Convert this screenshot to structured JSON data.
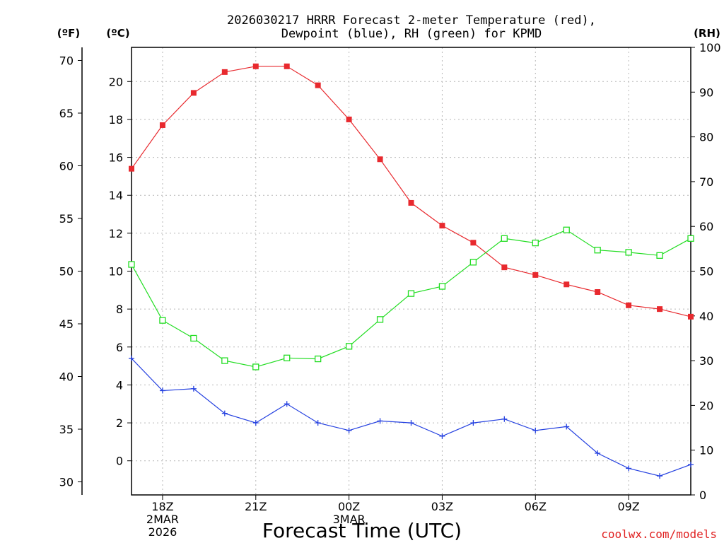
{
  "chart_data": {
    "type": "line",
    "title_line1": "2026030217 HRRR Forecast 2-meter Temperature (red),",
    "title_line2": "Dewpoint (blue), RH (green) for KPMD",
    "units": {
      "fahrenheit": "(ºF)",
      "celsius": "(ºC)",
      "rh": "(RH)"
    },
    "xlabel": "Forecast Time (UTC)",
    "credit": "coolwx.com/models",
    "x_hours": [
      0,
      1,
      2,
      3,
      4,
      5,
      6,
      7,
      8,
      9,
      10,
      11,
      12,
      13,
      14,
      15,
      16,
      17,
      18
    ],
    "x_ticks": [
      {
        "hour": 1,
        "lines": [
          "18Z",
          "2MAR",
          "2026"
        ]
      },
      {
        "hour": 4,
        "lines": [
          "21Z"
        ]
      },
      {
        "hour": 7,
        "lines": [
          "00Z",
          "3MAR"
        ]
      },
      {
        "hour": 10,
        "lines": [
          "03Z"
        ]
      },
      {
        "hour": 13,
        "lines": [
          "06Z"
        ]
      },
      {
        "hour": 16,
        "lines": [
          "09Z"
        ]
      }
    ],
    "celsius_range": [
      -1.8,
      21.8
    ],
    "celsius_ticks": [
      0,
      2,
      4,
      6,
      8,
      10,
      12,
      14,
      16,
      18,
      20
    ],
    "fahrenheit_ticks": [
      30,
      35,
      40,
      45,
      50,
      55,
      60,
      65,
      70
    ],
    "rh_range": [
      0,
      100
    ],
    "rh_ticks": [
      0,
      10,
      20,
      30,
      40,
      50,
      60,
      70,
      80,
      90,
      100
    ],
    "series": [
      {
        "name": "Temperature",
        "axis": "celsius",
        "color": "#e8292e",
        "marker": "filled-square",
        "values": [
          15.4,
          17.7,
          19.4,
          20.5,
          20.8,
          20.8,
          19.8,
          18.0,
          15.9,
          13.6,
          12.4,
          11.5,
          10.2,
          9.8,
          9.3,
          8.9,
          8.2,
          8.0,
          7.6
        ]
      },
      {
        "name": "Dewpoint",
        "axis": "celsius",
        "color": "#2440e0",
        "marker": "plus",
        "values": [
          5.4,
          3.7,
          3.8,
          2.5,
          2.0,
          3.0,
          2.0,
          1.6,
          2.1,
          2.0,
          1.3,
          2.0,
          2.2,
          1.6,
          1.8,
          0.4,
          -0.4,
          -0.8,
          -0.2
        ]
      },
      {
        "name": "RH",
        "axis": "rh",
        "color": "#22dd22",
        "marker": "open-square",
        "values": [
          51.5,
          39.0,
          35.0,
          30.0,
          28.6,
          30.6,
          30.4,
          33.2,
          39.2,
          45.0,
          46.6,
          52.0,
          57.3,
          56.3,
          59.2,
          54.7,
          54.2,
          53.5,
          57.3
        ]
      }
    ]
  }
}
